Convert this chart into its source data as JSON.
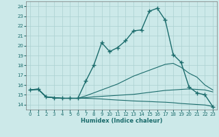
{
  "xlabel": "Humidex (Indice chaleur)",
  "xlim": [
    -0.5,
    23.5
  ],
  "ylim": [
    13.5,
    24.5
  ],
  "xticks": [
    0,
    1,
    2,
    3,
    4,
    5,
    6,
    7,
    8,
    9,
    10,
    11,
    12,
    13,
    14,
    15,
    16,
    17,
    18,
    19,
    20,
    21,
    22,
    23
  ],
  "yticks": [
    14,
    15,
    16,
    17,
    18,
    19,
    20,
    21,
    22,
    23,
    24
  ],
  "background_color": "#cce9e9",
  "grid_color": "#aad0d0",
  "line_color": "#1a6b6b",
  "curves": [
    {
      "x": [
        0,
        1,
        2,
        3,
        4,
        5,
        6,
        7,
        8,
        9,
        10,
        11,
        12,
        13,
        14,
        15,
        16,
        17,
        18,
        19,
        20,
        21,
        22,
        23
      ],
      "y": [
        15.5,
        15.6,
        14.8,
        14.7,
        14.65,
        14.65,
        14.65,
        16.4,
        18.0,
        20.3,
        19.4,
        19.8,
        20.5,
        21.5,
        21.6,
        23.5,
        23.8,
        22.6,
        19.1,
        18.3,
        15.8,
        15.2,
        15.0,
        13.8
      ],
      "has_markers": true
    },
    {
      "x": [
        0,
        1,
        2,
        3,
        4,
        5,
        6,
        7,
        8,
        9,
        10,
        11,
        12,
        13,
        14,
        15,
        16,
        17,
        18,
        19,
        20,
        21,
        22,
        23
      ],
      "y": [
        15.5,
        15.55,
        14.78,
        14.72,
        14.65,
        14.65,
        14.65,
        14.9,
        15.2,
        15.5,
        15.8,
        16.1,
        16.5,
        16.9,
        17.2,
        17.5,
        17.8,
        18.1,
        18.2,
        17.8,
        17.2,
        16.8,
        16.0,
        15.5
      ],
      "has_markers": false
    },
    {
      "x": [
        0,
        1,
        2,
        3,
        4,
        5,
        6,
        7,
        8,
        9,
        10,
        11,
        12,
        13,
        14,
        15,
        16,
        17,
        18,
        19,
        20,
        21,
        22,
        23
      ],
      "y": [
        15.5,
        15.55,
        14.78,
        14.72,
        14.65,
        14.65,
        14.65,
        14.72,
        14.8,
        14.85,
        14.9,
        14.95,
        15.0,
        15.05,
        15.15,
        15.25,
        15.35,
        15.45,
        15.5,
        15.55,
        15.6,
        15.55,
        15.5,
        15.3
      ],
      "has_markers": false
    },
    {
      "x": [
        0,
        1,
        2,
        3,
        4,
        5,
        6,
        7,
        8,
        9,
        10,
        11,
        12,
        13,
        14,
        15,
        16,
        17,
        18,
        19,
        20,
        21,
        22,
        23
      ],
      "y": [
        15.5,
        15.55,
        14.78,
        14.72,
        14.65,
        14.65,
        14.65,
        14.65,
        14.62,
        14.58,
        14.52,
        14.47,
        14.43,
        14.38,
        14.35,
        14.32,
        14.28,
        14.25,
        14.2,
        14.12,
        14.07,
        14.02,
        13.97,
        13.82
      ],
      "has_markers": false
    }
  ]
}
